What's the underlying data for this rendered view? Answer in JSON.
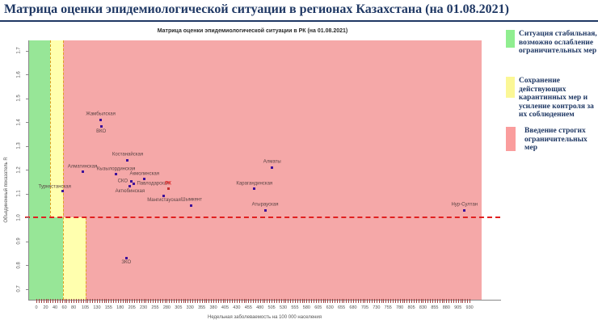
{
  "header": {
    "title": "Матрица оценки эпидемиологической ситуации в регионах Казахстана (на 01.08.2021)"
  },
  "legend": {
    "items": [
      {
        "color": "#90ee90",
        "label": "Ситуация стабильная, возможно ослабление ограничительных мер"
      },
      {
        "color": "#fbf796",
        "label": "Сохранение действующих карантинных мер и усиление контроля за их соблюдением"
      },
      {
        "color": "#fa9d9d",
        "label": "Введение строгих ограничительных мер"
      }
    ]
  },
  "colors": {
    "title_navy": "#1f3864",
    "point": "#3d1199",
    "point_label": "#5a4343",
    "highlight_red": "#e02020",
    "zone_boundary_dash": "#e0a020"
  },
  "chart_data": {
    "type": "scatter",
    "title": "Матрица оценки эпидемиологической ситуации в РК (на 01.08.2021)",
    "xlabel": "Недельная заболеваемость на 100 000 населения",
    "ylabel": "Объединенный показатель R",
    "xlim": [
      -15,
      1000
    ],
    "ylim": [
      0.66,
      1.74
    ],
    "x_ticks": [
      0,
      20,
      40,
      60,
      80,
      105,
      130,
      155,
      180,
      205,
      230,
      255,
      280,
      305,
      330,
      355,
      380,
      405,
      430,
      455,
      480,
      505,
      530,
      555,
      580,
      605,
      630,
      655,
      680,
      705,
      730,
      755,
      780,
      805,
      830,
      855,
      880,
      905,
      930
    ],
    "y_ticks": [
      "1.7",
      "1.6",
      "1.5",
      "1.4",
      "1.3",
      "1.2",
      "1.1",
      "1.0",
      "0.9",
      "0.8",
      "0.7"
    ],
    "reference_line_r": 1.0,
    "zones": {
      "above_line": {
        "green_max": 30,
        "yellow_max": 57
      },
      "below_line": {
        "green_max": 57,
        "yellow_max": 105
      },
      "shaded_x_max": 955,
      "colors": {
        "green": "#97e697",
        "yellow": "#ffffae",
        "pink": "#f5a8a8"
      }
    },
    "points": [
      {
        "name": "Жамбылская",
        "x": 138,
        "r": 1.41,
        "label_pos": "above"
      },
      {
        "name": "ВКО",
        "x": 139,
        "r": 1.38,
        "label_pos": "below"
      },
      {
        "name": "Костанайская",
        "x": 196,
        "r": 1.24,
        "label_pos": "above"
      },
      {
        "name": "Алматы",
        "x": 506,
        "r": 1.21,
        "label_pos": "above"
      },
      {
        "name": "Алматинская",
        "x": 99,
        "r": 1.19,
        "label_pos": "above"
      },
      {
        "name": "Кызылординская",
        "x": 171,
        "r": 1.18,
        "label_pos": "above"
      },
      {
        "name": "Акмолинская",
        "x": 232,
        "r": 1.16,
        "label_pos": "above"
      },
      {
        "name": "СКО",
        "x": 203,
        "r": 1.15,
        "label_pos": "left"
      },
      {
        "name": "Павлодарская",
        "x": 209,
        "r": 1.14,
        "label_pos": "right"
      },
      {
        "name": "Актюбинская",
        "x": 201,
        "r": 1.13,
        "label_pos": "below"
      },
      {
        "name": "Карагандинская",
        "x": 468,
        "r": 1.12,
        "label_pos": "above"
      },
      {
        "name": "РК",
        "x": 283,
        "r": 1.12,
        "label_pos": "above",
        "highlight": true
      },
      {
        "name": "Туркестанская",
        "x": 57,
        "r": 1.11,
        "label_pos": "above-left"
      },
      {
        "name": "Мангистауская",
        "x": 274,
        "r": 1.09,
        "label_pos": "below"
      },
      {
        "name": "Шымкент",
        "x": 333,
        "r": 1.05,
        "label_pos": "above"
      },
      {
        "name": "Атырауская",
        "x": 491,
        "r": 1.03,
        "label_pos": "above"
      },
      {
        "name": "Нур-Султан",
        "x": 919,
        "r": 1.03,
        "label_pos": "above"
      },
      {
        "name": "ЗКО",
        "x": 193,
        "r": 0.83,
        "label_pos": "below"
      }
    ]
  }
}
